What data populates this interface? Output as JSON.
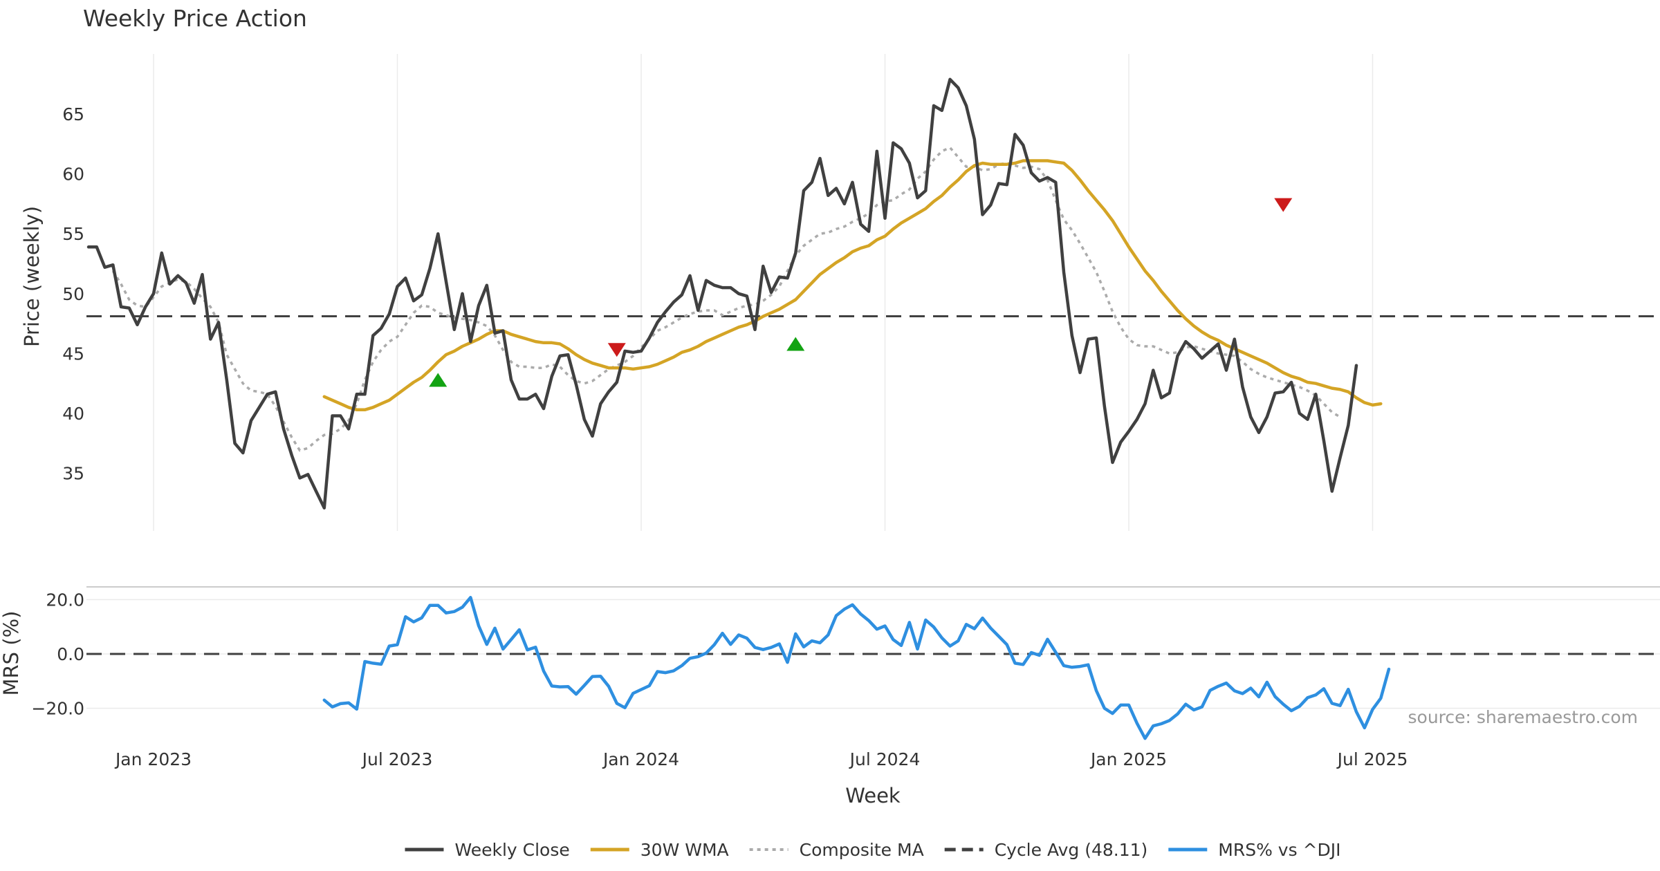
{
  "chart_data": [
    {
      "type": "line",
      "panel": "price",
      "title": "Weekly Price Action",
      "xlabel": "Week",
      "ylabel": "Price (weekly)",
      "x_tick_labels": [
        "Jan 2023",
        "Jul 2023",
        "Jan 2024",
        "Jul 2024",
        "Jan 2025",
        "Jul 2025"
      ],
      "y_ticks": [
        35,
        40,
        45,
        50,
        55,
        60,
        65
      ],
      "ylim": [
        30,
        70
      ],
      "x_axis": "week index 0-155 (weekly, starting Nov 2022)",
      "week_ticks": [
        8,
        38,
        68,
        98,
        128,
        158
      ],
      "series": [
        {
          "name": "Weekly Close",
          "color": "#404040",
          "style": "solid",
          "start_week": 0,
          "values": [
            53.9,
            53.9,
            52.2,
            52.4,
            48.9,
            48.8,
            47.4,
            48.9,
            50.0,
            53.4,
            50.8,
            51.5,
            50.9,
            49.2,
            51.6,
            46.2,
            47.6,
            42.8,
            37.5,
            36.7,
            39.4,
            40.5,
            41.6,
            41.8,
            38.7,
            36.5,
            34.6,
            34.9,
            33.5,
            32.1,
            39.8,
            39.8,
            38.7,
            41.6,
            41.6,
            46.5,
            47.1,
            48.3,
            50.6,
            51.3,
            49.4,
            49.9,
            52.1,
            55.0,
            51.0,
            47.0,
            50.0,
            46.0,
            49.0,
            50.7,
            46.7,
            46.9,
            42.8,
            41.2,
            41.2,
            41.6,
            40.4,
            43.1,
            44.8,
            44.9,
            42.4,
            39.5,
            38.1,
            40.8,
            41.8,
            42.6,
            45.2,
            45.1,
            45.2,
            46.3,
            47.6,
            48.5,
            49.3,
            49.9,
            51.5,
            48.6,
            51.1,
            50.7,
            50.5,
            50.5,
            50.0,
            49.8,
            47.0,
            52.3,
            50.1,
            51.4,
            51.3,
            53.4,
            58.6,
            59.3,
            61.3,
            58.2,
            58.8,
            57.5,
            59.3,
            55.8,
            55.2,
            61.9,
            56.3,
            62.6,
            62.1,
            60.9,
            58.0,
            58.6,
            65.7,
            65.3,
            67.9,
            67.2,
            65.7,
            62.9,
            56.6,
            57.4,
            59.2,
            59.1,
            63.3,
            62.4,
            60.1,
            59.4,
            59.7,
            59.3,
            51.8,
            46.5,
            43.4,
            46.2,
            46.3,
            40.6,
            35.9,
            37.6,
            38.5,
            39.5,
            40.8,
            43.6,
            41.3,
            41.7,
            44.8,
            46.0,
            45.4,
            44.6,
            45.2,
            45.8,
            43.6,
            46.2,
            42.2,
            39.7,
            38.4,
            39.7,
            41.7,
            41.8,
            42.6,
            40.0,
            39.5,
            41.6,
            37.7,
            33.5,
            36.3,
            39.0,
            44.0
          ]
        },
        {
          "name": "30W WMA",
          "color": "#D4A425",
          "style": "solid",
          "start_week": 29,
          "values": [
            41.4,
            41.1,
            40.8,
            40.5,
            40.3,
            40.3,
            40.5,
            40.8,
            41.1,
            41.6,
            42.1,
            42.6,
            43.0,
            43.6,
            44.3,
            44.9,
            45.2,
            45.6,
            45.9,
            46.2,
            46.6,
            46.9,
            46.9,
            46.6,
            46.4,
            46.2,
            46.0,
            45.9,
            45.9,
            45.8,
            45.4,
            44.9,
            44.5,
            44.2,
            44.0,
            43.8,
            43.8,
            43.8,
            43.7,
            43.8,
            43.9,
            44.1,
            44.4,
            44.7,
            45.1,
            45.3,
            45.6,
            46.0,
            46.3,
            46.6,
            46.9,
            47.2,
            47.4,
            47.7,
            48.1,
            48.4,
            48.7,
            49.1,
            49.5,
            50.2,
            50.9,
            51.6,
            52.1,
            52.6,
            53.0,
            53.5,
            53.8,
            54.0,
            54.5,
            54.8,
            55.4,
            55.9,
            56.3,
            56.7,
            57.1,
            57.7,
            58.2,
            58.9,
            59.5,
            60.2,
            60.7,
            60.9,
            60.8,
            60.8,
            60.8,
            60.9,
            61.1,
            61.1,
            61.1,
            61.1,
            61.0,
            60.9,
            60.3,
            59.5,
            58.6,
            57.8,
            57.0,
            56.1,
            55.0,
            53.9,
            52.9,
            51.9,
            51.1,
            50.2,
            49.4,
            48.6,
            47.9,
            47.3,
            46.8,
            46.4,
            46.1,
            45.7,
            45.4,
            45.1,
            44.8,
            44.5,
            44.2,
            43.8,
            43.4,
            43.1,
            42.9,
            42.6,
            42.5,
            42.3,
            42.1,
            42.0,
            41.8,
            41.3,
            40.9,
            40.7,
            40.8
          ]
        },
        {
          "name": "Composite MA",
          "color": "#ABABAB",
          "style": "dotted",
          "start_week": 3,
          "values": [
            51.9,
            50.8,
            49.5,
            49.0,
            48.9,
            49.7,
            50.6,
            50.9,
            51.2,
            51.0,
            50.4,
            49.6,
            48.9,
            47.6,
            44.9,
            43.7,
            42.5,
            41.9,
            41.8,
            41.6,
            40.6,
            39.3,
            38.0,
            36.9,
            37.1,
            37.7,
            38.2,
            38.3,
            38.7,
            39.4,
            40.8,
            42.8,
            44.3,
            45.3,
            46.0,
            46.4,
            47.4,
            48.4,
            49.0,
            48.9,
            48.4,
            48.2,
            48.0,
            47.9,
            47.8,
            47.6,
            47.3,
            46.5,
            45.3,
            44.3,
            43.9,
            43.9,
            43.8,
            43.8,
            44.1,
            43.9,
            43.2,
            42.7,
            42.5,
            42.7,
            43.2,
            43.7,
            44.0,
            44.3,
            44.8,
            45.5,
            46.2,
            46.9,
            47.2,
            47.6,
            48.0,
            48.3,
            48.5,
            48.6,
            48.6,
            48.2,
            48.5,
            48.8,
            49.0,
            49.1,
            49.4,
            49.9,
            50.6,
            51.9,
            53.2,
            54.0,
            54.5,
            55.0,
            55.1,
            55.4,
            55.6,
            56.0,
            56.3,
            56.7,
            57.4,
            57.7,
            57.8,
            58.3,
            58.7,
            59.6,
            60.2,
            61.2,
            61.9,
            62.2,
            61.4,
            60.6,
            60.6,
            60.3,
            60.4,
            60.8,
            60.9,
            60.7,
            60.5,
            60.6,
            60.4,
            59.5,
            57.8,
            56.2,
            55.3,
            54.2,
            53.0,
            51.8,
            50.2,
            48.5,
            47.2,
            46.2,
            45.7,
            45.6,
            45.6,
            45.3,
            45.0,
            45.1,
            45.5,
            45.6,
            45.4,
            45.2,
            45.0,
            44.9,
            44.8,
            44.3,
            43.7,
            43.3,
            43.0,
            42.8,
            42.6,
            42.4,
            42.2,
            41.9,
            41.5,
            40.8,
            40.1,
            39.7
          ]
        },
        {
          "name": "Cycle Avg (48.11)",
          "color": "#404040",
          "style": "dashed",
          "value": 48.11
        }
      ],
      "signals": {
        "buy_weeks": [
          43,
          87
        ],
        "buy_values": [
          42.8,
          45.8
        ],
        "buy_color": "#13A313",
        "sell_weeks": [
          65,
          147
        ],
        "sell_values": [
          45.3,
          57.4
        ],
        "sell_color": "#CC1B1B"
      }
    },
    {
      "type": "line",
      "panel": "mrs",
      "ylabel": "MRS (%)",
      "y_tick_labels": [
        "20.0",
        "0.0",
        "−20.0"
      ],
      "y_ticks": [
        20,
        0,
        -20
      ],
      "ylim": [
        -32,
        22
      ],
      "series": [
        {
          "name": "MRS% vs ^DJI",
          "color": "#2E8FE0",
          "style": "solid",
          "start_week": 29,
          "values": [
            -17.0,
            -19.5,
            -18.3,
            -18.0,
            -20.3,
            -2.8,
            -3.4,
            -3.8,
            2.9,
            3.4,
            13.7,
            11.8,
            13.3,
            17.9,
            17.9,
            15.1,
            15.6,
            17.2,
            20.8,
            10.4,
            3.5,
            9.5,
            1.8,
            5.3,
            8.9,
            1.5,
            2.5,
            -6.3,
            -11.8,
            -12.1,
            -12.0,
            -14.8,
            -11.6,
            -8.3,
            -8.2,
            -11.9,
            -18.2,
            -19.8,
            -14.5,
            -13.1,
            -11.7,
            -6.5,
            -6.9,
            -6.2,
            -4.3,
            -1.6,
            -1.0,
            0.3,
            3.4,
            7.6,
            3.5,
            7.0,
            5.8,
            2.4,
            1.6,
            2.4,
            3.7,
            -3.1,
            7.4,
            2.6,
            4.8,
            4.1,
            7.0,
            14.1,
            16.5,
            18.1,
            14.7,
            12.3,
            9.1,
            10.3,
            5.3,
            3.1,
            11.6,
            1.8,
            12.5,
            9.9,
            5.9,
            2.9,
            4.8,
            10.9,
            9.3,
            13.2,
            9.5,
            6.5,
            3.4,
            -3.4,
            -3.9,
            0.5,
            -0.5,
            5.4,
            0.6,
            -4.3,
            -4.9,
            -4.6,
            -4.0,
            -13.5,
            -20.0,
            -21.9,
            -18.8,
            -18.8,
            -25.5,
            -31.1,
            -26.5,
            -25.7,
            -24.5,
            -22.1,
            -18.5,
            -20.6,
            -19.5,
            -13.4,
            -11.9,
            -10.7,
            -13.6,
            -14.6,
            -12.6,
            -15.8,
            -10.4,
            -15.7,
            -18.5,
            -20.9,
            -19.3,
            -16.1,
            -15.1,
            -12.8,
            -18.2,
            -19.0,
            -13.0,
            -21.3,
            -27.2,
            -20.4,
            -16.3,
            -5.6
          ]
        },
        {
          "name": "zero line",
          "color": "#404040",
          "style": "dashed",
          "value": 0
        }
      ]
    }
  ],
  "annotation": "source: sharemaestro.com",
  "legend": {
    "placement": "bottom-center",
    "items": [
      {
        "label": "Weekly Close",
        "color": "#404040",
        "style": "solid"
      },
      {
        "label": "30W WMA",
        "color": "#D4A425",
        "style": "solid"
      },
      {
        "label": "Composite MA",
        "color": "#ABABAB",
        "style": "dotted"
      },
      {
        "label": "Cycle Avg (48.11)",
        "color": "#404040",
        "style": "dashed"
      },
      {
        "label": "MRS% vs ^DJI",
        "color": "#2E8FE0",
        "style": "solid"
      }
    ]
  }
}
